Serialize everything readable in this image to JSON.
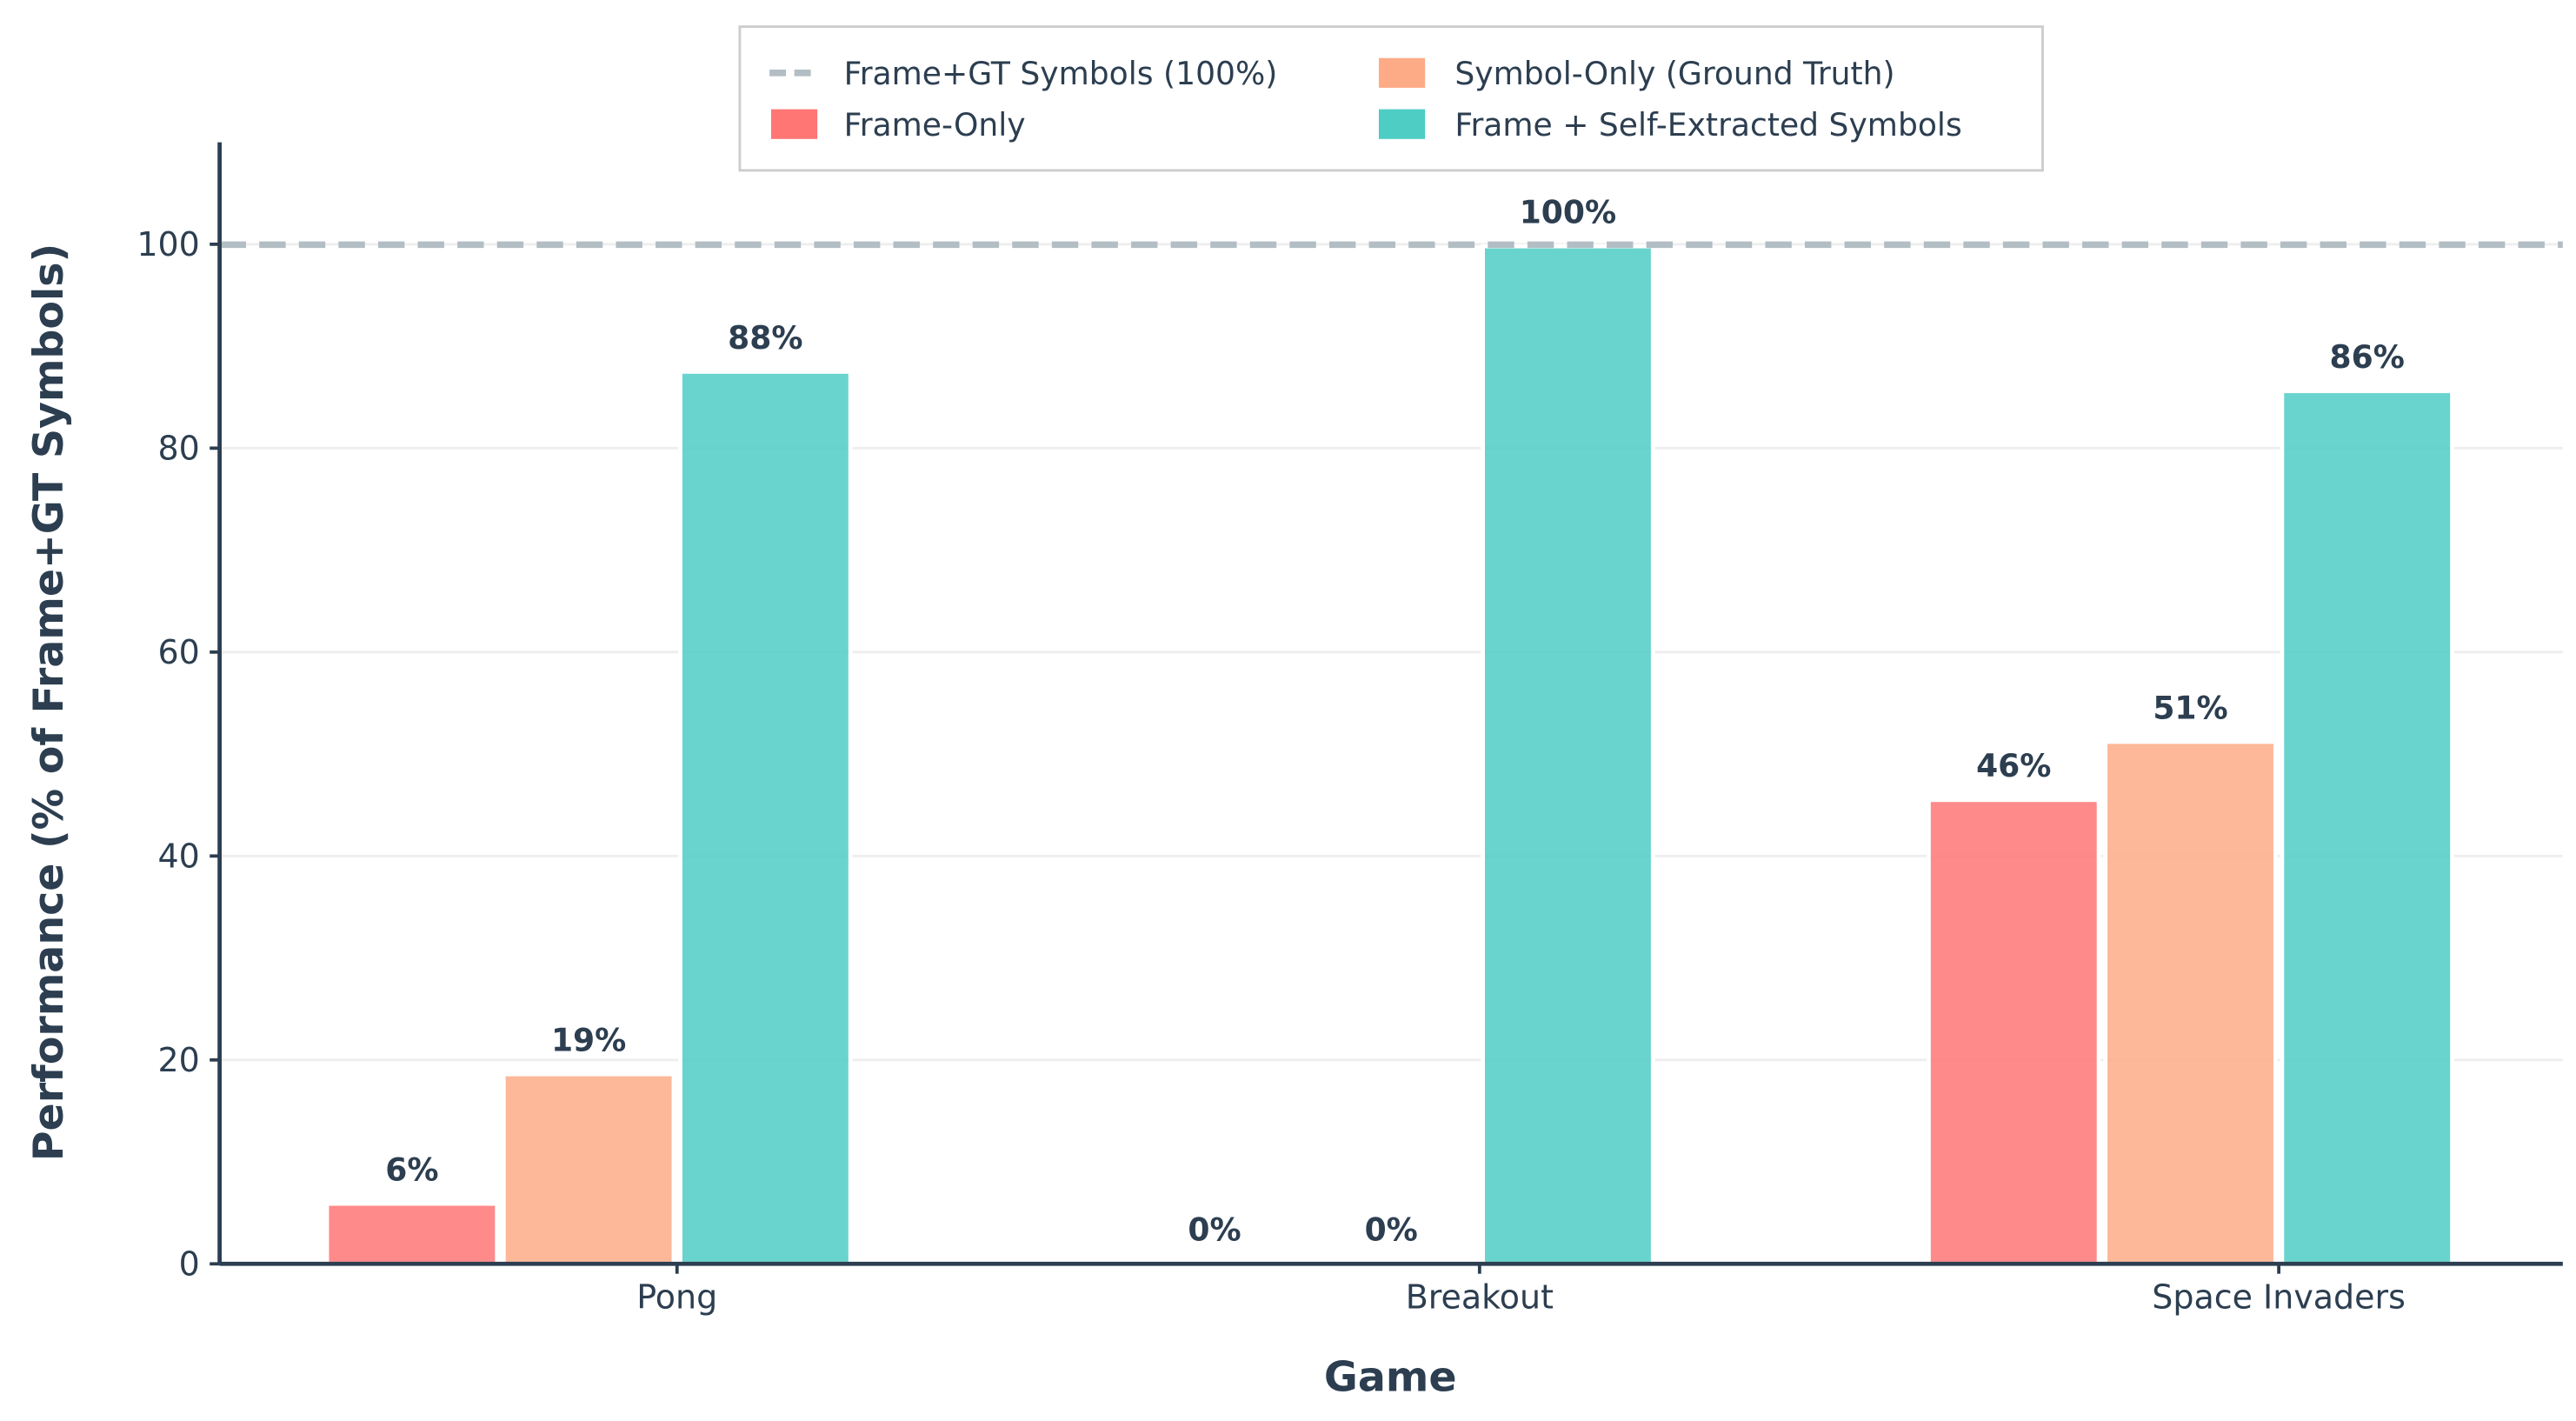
{
  "chart_data": {
    "type": "bar",
    "title": "",
    "xlabel": "Game",
    "ylabel": "Performance (% of Frame+GT Symbols)",
    "ylim": [
      0,
      110
    ],
    "yticks": [
      0,
      20,
      40,
      60,
      80,
      100
    ],
    "grid": "horizontal",
    "legend_placement": "top-center",
    "categories": [
      "Pong",
      "Breakout",
      "Space Invaders"
    ],
    "reference_line": {
      "name": "Frame+GT Symbols (100%)",
      "value": 100,
      "style": "dashed",
      "color": "#b2bec3"
    },
    "series": [
      {
        "name": "Frame-Only",
        "color": "#ff7675",
        "values": [
          5.9,
          0,
          45.5
        ],
        "labels": [
          "6%",
          "0%",
          "46%"
        ]
      },
      {
        "name": "Symbol-Only (Ground Truth)",
        "color": "#fdab87",
        "values": [
          18.6,
          0,
          51.2
        ],
        "labels": [
          "19%",
          "0%",
          "51%"
        ]
      },
      {
        "name": "Frame + Self-Extracted Symbols",
        "color": "#4ecdc4",
        "values": [
          87.5,
          99.8,
          85.6
        ],
        "labels": [
          "88%",
          "100%",
          "86%"
        ]
      }
    ]
  }
}
